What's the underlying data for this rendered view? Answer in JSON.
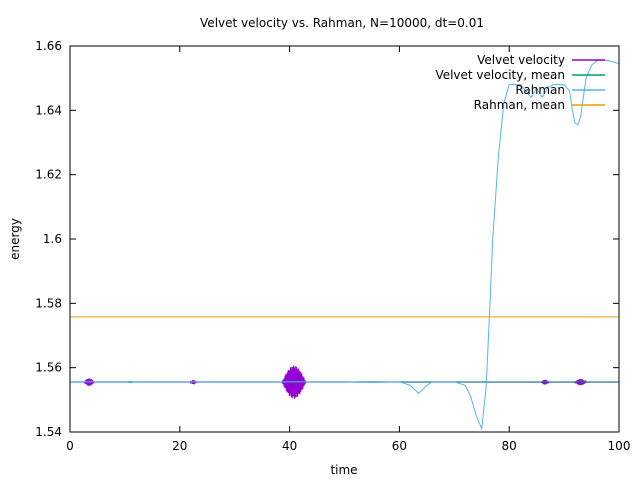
{
  "chart_data": {
    "type": "line",
    "title": "Velvet velocity vs. Rahman, N=10000, dt=0.01",
    "xlabel": "time",
    "ylabel": "energy",
    "xlim": [
      0,
      100
    ],
    "ylim": [
      1.54,
      1.66
    ],
    "x_ticks": [
      "0",
      "20",
      "40",
      "60",
      "80",
      "100"
    ],
    "y_ticks": [
      "1.54",
      "1.56",
      "1.58",
      "1.6",
      "1.62",
      "1.64",
      "1.66"
    ],
    "grid": false,
    "legend_position": "top-right",
    "series": [
      {
        "name": "Velvet velocity",
        "color": "#9400d3",
        "baseline": 1.5555,
        "bursts": [
          {
            "center": 3.5,
            "halfwidth": 1.0,
            "amplitude": 0.0012
          },
          {
            "center": 22.5,
            "halfwidth": 0.6,
            "amplitude": 0.0007
          },
          {
            "center": 40.8,
            "halfwidth": 2.2,
            "amplitude": 0.0052
          },
          {
            "center": 86.5,
            "halfwidth": 0.7,
            "amplitude": 0.0008
          },
          {
            "center": 93.0,
            "halfwidth": 1.1,
            "amplitude": 0.001
          }
        ]
      },
      {
        "name": "Velvet velocity, mean",
        "color": "#009e73",
        "x": [
          0,
          100
        ],
        "y": [
          1.5556,
          1.5556
        ]
      },
      {
        "name": "Rahman",
        "color": "#56b4e9",
        "x": [
          0,
          10,
          11,
          12,
          20,
          40,
          50,
          55,
          60,
          62,
          63.5,
          65,
          66,
          70,
          72,
          73,
          74,
          75,
          75.8,
          76.5,
          77,
          78,
          79,
          80,
          82,
          84,
          85,
          86,
          87,
          88,
          89,
          90,
          91,
          91.5,
          92,
          92.5,
          93,
          93.5,
          94,
          95,
          96,
          97,
          98,
          99,
          100
        ],
        "y": [
          1.5556,
          1.5556,
          1.5553,
          1.5556,
          1.5556,
          1.5556,
          1.5556,
          1.5554,
          1.5556,
          1.5545,
          1.552,
          1.5545,
          1.5556,
          1.5556,
          1.5545,
          1.551,
          1.545,
          1.541,
          1.554,
          1.58,
          1.6,
          1.625,
          1.642,
          1.648,
          1.648,
          1.644,
          1.647,
          1.644,
          1.647,
          1.648,
          1.648,
          1.648,
          1.646,
          1.64,
          1.636,
          1.6355,
          1.638,
          1.644,
          1.65,
          1.654,
          1.6555,
          1.6556,
          1.6555,
          1.655,
          1.6545
        ]
      },
      {
        "name": "Rahman, mean",
        "color": "#e69f00",
        "x": [
          0,
          100
        ],
        "y": [
          1.5758,
          1.5758
        ]
      }
    ]
  }
}
